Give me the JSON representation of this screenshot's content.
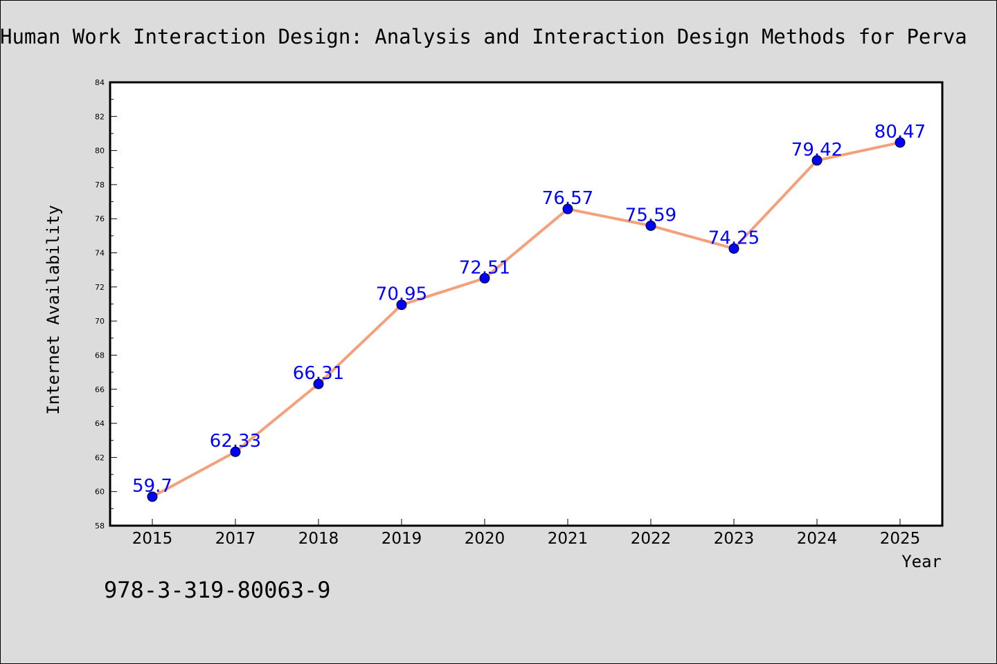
{
  "chart_data": {
    "type": "line",
    "title": "Human Work Interaction Design: Analysis and Interaction Design Methods for Perva",
    "xlabel": "Year",
    "ylabel": "Internet Availability",
    "ylim": [
      58,
      84
    ],
    "ytick_step": 2,
    "grid": false,
    "categories": [
      "2015",
      "2017",
      "2018",
      "2019",
      "2020",
      "2021",
      "2022",
      "2023",
      "2024",
      "2025"
    ],
    "series": [
      {
        "values": [
          59.7,
          62.33,
          66.31,
          70.95,
          72.51,
          76.57,
          75.59,
          74.25,
          79.42,
          80.47
        ],
        "line_color": "#f4a07a",
        "marker_color": "#0000ff",
        "label_color": "#0000ff"
      }
    ],
    "data_labels": [
      "59.7",
      "62.33",
      "66.31",
      "70.95",
      "72.51",
      "76.57",
      "75.59",
      "74.25",
      "79.42",
      "80.47"
    ],
    "footnote": "978-3-319-80063-9"
  }
}
